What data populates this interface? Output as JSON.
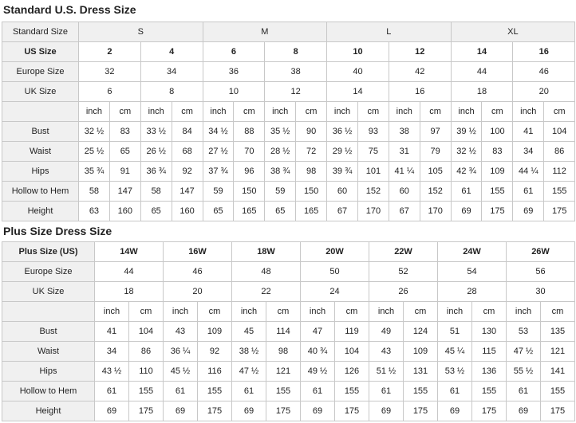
{
  "sections": [
    {
      "title": "Standard U.S. Dress Size",
      "table": {
        "rows": [
          {
            "label": "Standard Size",
            "cells": [
              "S",
              "M",
              "L",
              "XL"
            ]
          },
          {
            "label": "US Size",
            "cells": [
              2,
              4,
              6,
              8,
              10,
              12,
              14,
              16
            ]
          },
          {
            "label": "Europe Size",
            "cells": [
              32,
              34,
              36,
              38,
              40,
              42,
              44,
              46
            ]
          },
          {
            "label": "UK Size",
            "cells": [
              6,
              8,
              10,
              12,
              14,
              16,
              18,
              20
            ]
          },
          {
            "cells": [
              "inch",
              "cm",
              "inch",
              "cm",
              "inch",
              "cm",
              "inch",
              "cm",
              "inch",
              "cm",
              "inch",
              "cm",
              "inch",
              "cm",
              "inch",
              "cm"
            ]
          },
          {
            "label": "Bust",
            "cells": [
              "32 ½",
              83,
              "33 ½",
              84,
              "34 ½",
              88,
              "35 ½",
              90,
              "36 ½",
              93,
              38,
              97,
              "39 ½",
              100,
              41,
              104
            ]
          },
          {
            "label": "Waist",
            "cells": [
              "25 ½",
              65,
              "26 ½",
              68,
              "27 ½",
              70,
              "28 ½",
              72,
              "29 ½",
              75,
              31,
              79,
              "32 ½",
              83,
              34,
              86
            ]
          },
          {
            "label": "Hips",
            "cells": [
              "35 ¾",
              91,
              "36 ¾",
              92,
              "37 ¾",
              96,
              "38 ¾",
              98,
              "39 ¾",
              101,
              "41 ¼",
              105,
              "42 ¾",
              109,
              "44 ¼",
              112
            ]
          },
          {
            "label": "Hollow to Hem",
            "cells": [
              58,
              147,
              58,
              147,
              59,
              150,
              59,
              150,
              60,
              152,
              60,
              152,
              61,
              155,
              61,
              155
            ]
          },
          {
            "label": "Height",
            "cells": [
              63,
              160,
              65,
              160,
              65,
              165,
              65,
              165,
              67,
              170,
              67,
              170,
              69,
              175,
              69,
              175
            ]
          }
        ]
      }
    },
    {
      "title": "Plus Size Dress Size",
      "table": {
        "rows": [
          {
            "label": "Plus Size (US)",
            "cells": [
              "14W",
              "16W",
              "18W",
              "20W",
              "22W",
              "24W",
              "26W"
            ]
          },
          {
            "label": "Europe Size",
            "cells": [
              44,
              46,
              48,
              50,
              52,
              54,
              56
            ]
          },
          {
            "label": "UK Size",
            "cells": [
              18,
              20,
              22,
              24,
              26,
              28,
              30
            ]
          },
          {
            "cells": [
              "inch",
              "cm",
              "inch",
              "cm",
              "inch",
              "cm",
              "inch",
              "cm",
              "inch",
              "cm",
              "inch",
              "cm",
              "inch",
              "cm"
            ]
          },
          {
            "label": "Bust",
            "cells": [
              41,
              104,
              43,
              109,
              45,
              114,
              47,
              119,
              49,
              124,
              51,
              130,
              53,
              135
            ]
          },
          {
            "label": "Waist",
            "cells": [
              34,
              86,
              "36 ¼",
              92,
              "38 ½",
              98,
              "40 ¾",
              104,
              43,
              109,
              "45 ¼",
              115,
              "47 ½",
              121
            ]
          },
          {
            "label": "Hips",
            "cells": [
              "43 ½",
              110,
              "45 ½",
              116,
              "47 ½",
              121,
              "49 ½",
              126,
              "51 ½",
              131,
              "53 ½",
              136,
              "55 ½",
              141
            ]
          },
          {
            "label": "Hollow to Hem",
            "cells": [
              61,
              155,
              61,
              155,
              61,
              155,
              61,
              155,
              61,
              155,
              61,
              155,
              61,
              155
            ]
          },
          {
            "label": "Height",
            "cells": [
              69,
              175,
              69,
              175,
              69,
              175,
              69,
              175,
              69,
              175,
              69,
              175,
              69,
              175
            ]
          }
        ]
      }
    }
  ]
}
